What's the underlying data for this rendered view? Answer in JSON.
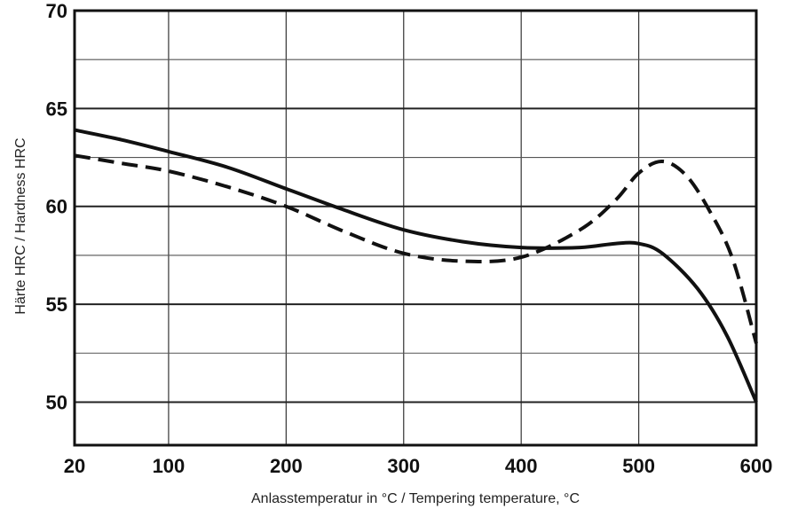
{
  "chart_data": {
    "type": "line",
    "title": "",
    "xlabel": "Anlasstemperatur in °C / Tempering temperature, °C",
    "ylabel": "Härte HRC / Hardness HRC",
    "xlim": [
      20,
      600
    ],
    "ylim": [
      47.8,
      70
    ],
    "x_ticks": [
      {
        "value": 20,
        "label": "20"
      },
      {
        "value": 100,
        "label": "100"
      },
      {
        "value": 200,
        "label": "200"
      },
      {
        "value": 300,
        "label": "300"
      },
      {
        "value": 400,
        "label": "400"
      },
      {
        "value": 500,
        "label": "500"
      },
      {
        "value": 600,
        "label": "600"
      }
    ],
    "y_ticks": [
      {
        "value": 50,
        "label": "50"
      },
      {
        "value": 55,
        "label": "55"
      },
      {
        "value": 60,
        "label": "60"
      },
      {
        "value": 65,
        "label": "65"
      },
      {
        "value": 70,
        "label": "70"
      }
    ],
    "grid": true,
    "legend": "none",
    "series": [
      {
        "style": "solid",
        "color": "#111111",
        "x": [
          20,
          60,
          100,
          150,
          200,
          250,
          300,
          350,
          400,
          450,
          480,
          500,
          520,
          550,
          575,
          600
        ],
        "y": [
          63.9,
          63.4,
          62.8,
          62.0,
          60.9,
          59.8,
          58.8,
          58.2,
          57.9,
          57.9,
          58.1,
          58.1,
          57.6,
          55.8,
          53.4,
          50.0
        ]
      },
      {
        "style": "dashed",
        "color": "#111111",
        "x": [
          20,
          60,
          100,
          150,
          200,
          250,
          300,
          350,
          400,
          450,
          480,
          500,
          520,
          540,
          560,
          580,
          600
        ],
        "y": [
          62.6,
          62.2,
          61.8,
          61.0,
          60.0,
          58.7,
          57.6,
          57.2,
          57.4,
          58.8,
          60.3,
          61.7,
          62.3,
          61.6,
          59.8,
          57.3,
          53.0
        ]
      }
    ]
  }
}
